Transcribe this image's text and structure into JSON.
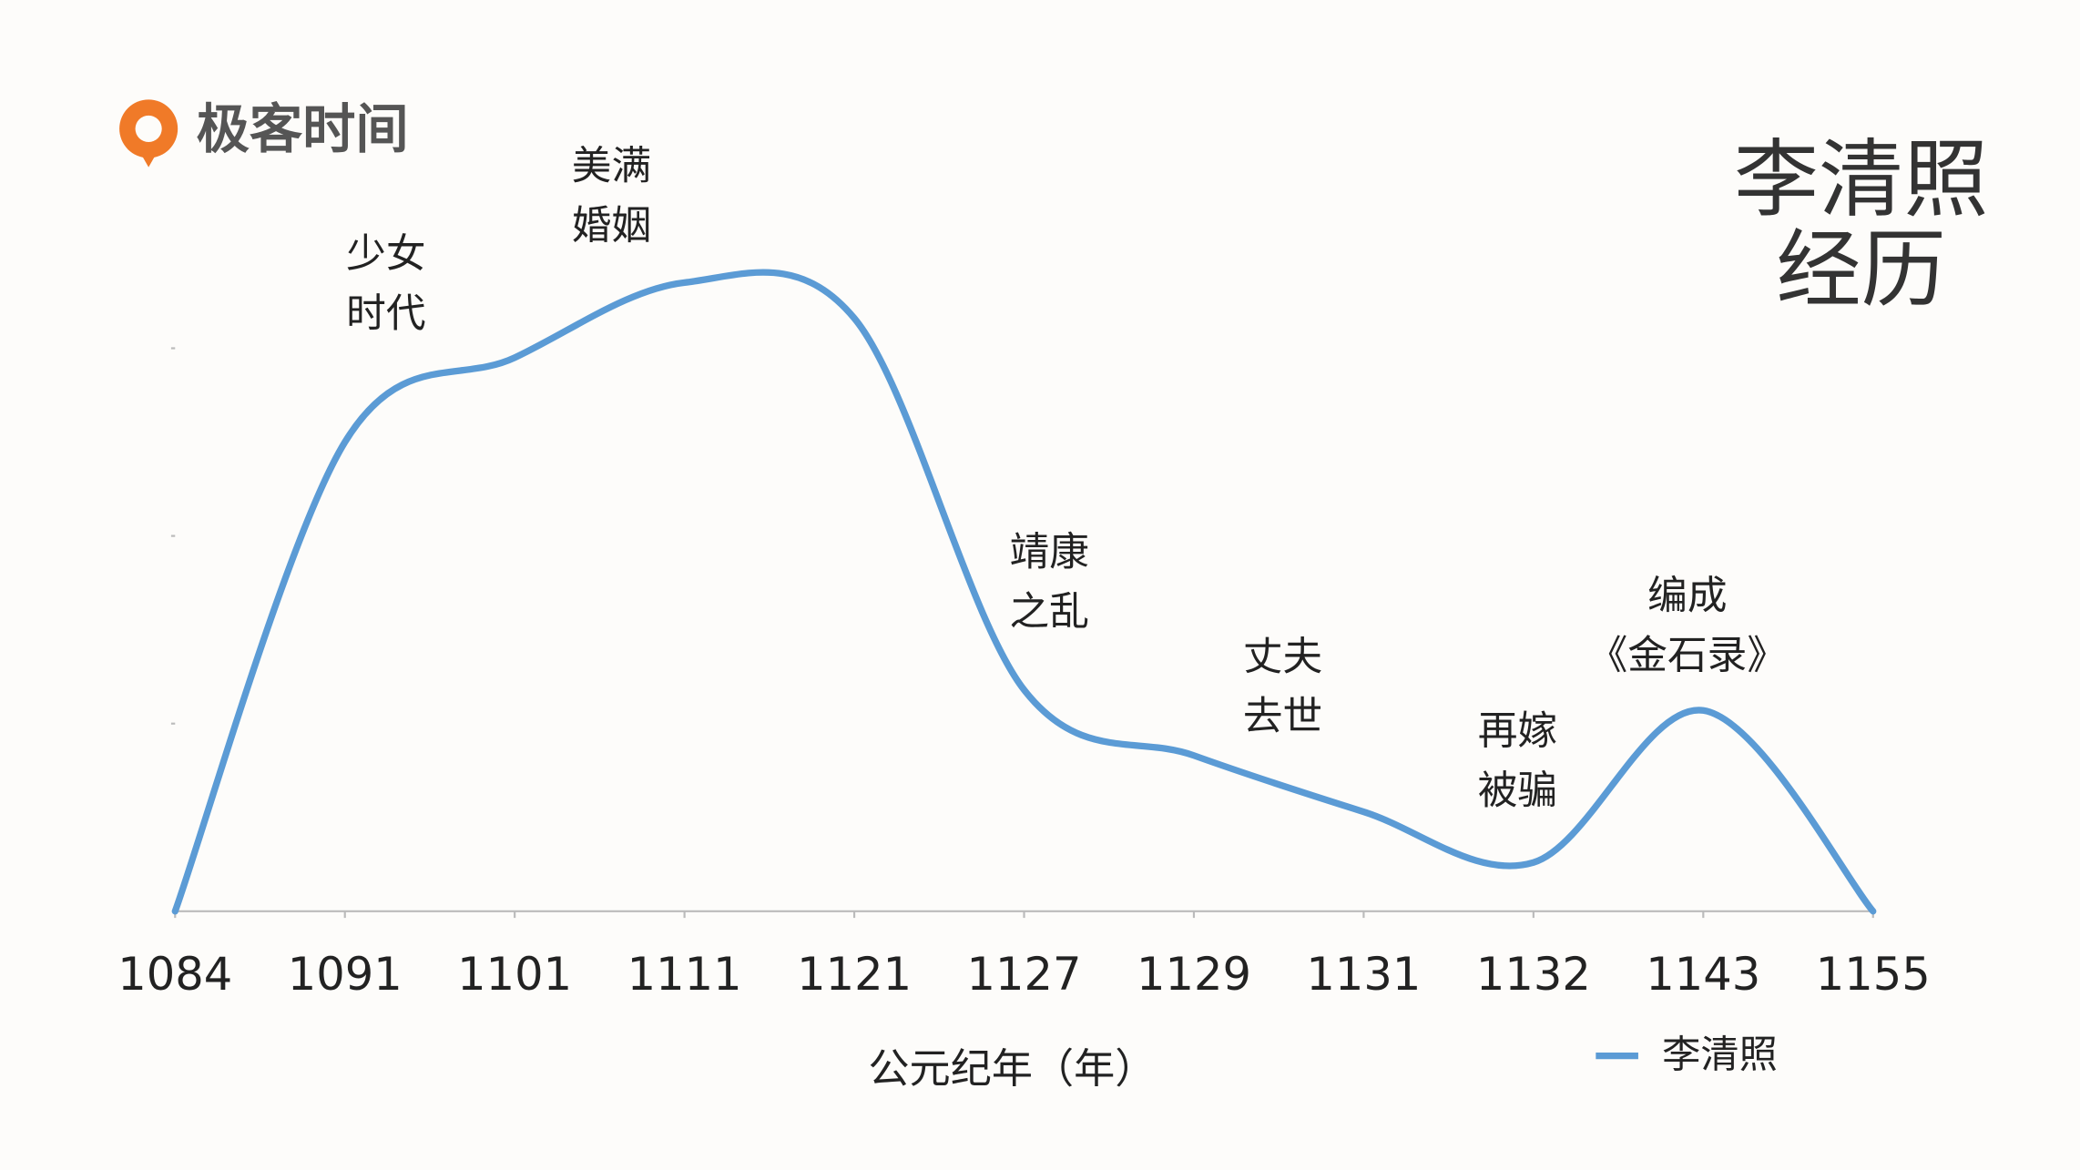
{
  "brand": "极客时间",
  "chart_data": {
    "type": "line",
    "title": [
      "李清照",
      "经历"
    ],
    "x_label": "公元纪年（年）",
    "categories": [
      "1084",
      "1091",
      "1101",
      "1111",
      "1121",
      "1127",
      "1129",
      "1131",
      "1132",
      "1143",
      "1155"
    ],
    "series": [
      {
        "name": "李清照",
        "color": "#5b9bd5",
        "values": [
          0,
          2.5,
          2.95,
          3.35,
          3.16,
          1.18,
          0.83,
          0.53,
          0.26,
          1.07,
          0
        ]
      }
    ],
    "ylim": [
      0,
      4
    ],
    "yticks": [
      1,
      2,
      3
    ],
    "annotations": [
      [
        "少女",
        "时代"
      ],
      [
        "美满",
        "婚姻"
      ],
      [
        "靖康",
        "之乱"
      ],
      [
        "丈夫",
        "去世"
      ],
      [
        "再嫁",
        "被骗"
      ],
      [
        "编成",
        "《金石录》"
      ]
    ],
    "legend": "bottom-right"
  }
}
